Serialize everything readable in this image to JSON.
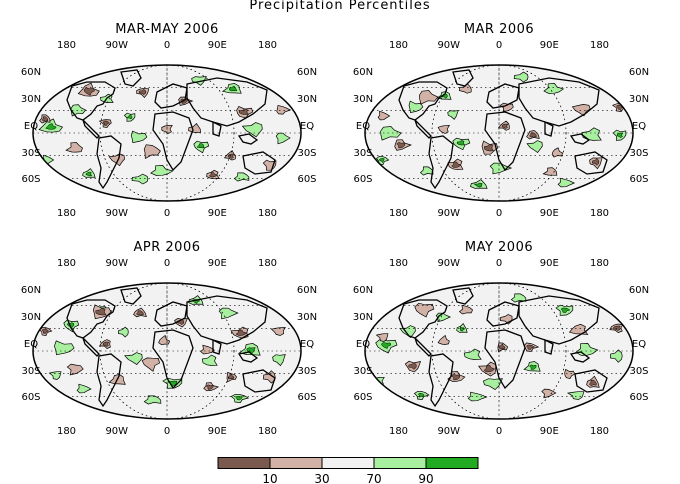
{
  "title": "Precipitation Percentiles",
  "lon_labels": [
    "180",
    "90W",
    "0",
    "90E",
    "180"
  ],
  "lat_labels_left": [
    "60N",
    "30N",
    "EQ",
    "30S",
    "60S"
  ],
  "lat_labels_right": [
    "60N",
    "30N",
    "EQ",
    "30S",
    "60S"
  ],
  "panels": [
    {
      "title": "MAR-MAY 2006"
    },
    {
      "title": "MAR 2006"
    },
    {
      "title": "APR 2006"
    },
    {
      "title": "MAY 2006"
    }
  ],
  "legend": {
    "colors": [
      "#7a5a4e",
      "#d2b2a6",
      "#f2f2f2",
      "#a8f0a0",
      "#22aa22"
    ],
    "ticks": [
      "10",
      "30",
      "70",
      "90"
    ]
  }
}
